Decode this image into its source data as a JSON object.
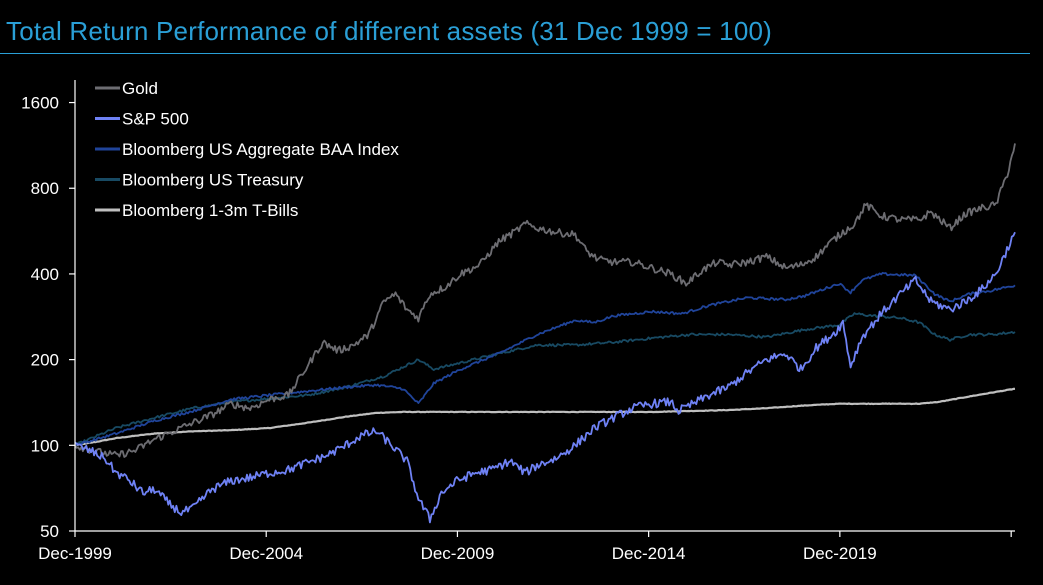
{
  "title": "Total Return Performance of different assets (31 Dec 1999 = 100)",
  "colors": {
    "title": "#2a9fd6",
    "axis": "#ffffff",
    "background": "#000000"
  },
  "chart_data": {
    "type": "line",
    "title": "Total Return Performance of different assets (31 Dec 1999 = 100)",
    "xlabel": "",
    "ylabel": "",
    "y_scale": "log",
    "ylim": [
      50,
      1800
    ],
    "xlim": [
      "Dec-1999",
      "Jun-2024"
    ],
    "grid": false,
    "legend_position": "top-left",
    "x_ticks": [
      "Dec-1999",
      "Dec-2004",
      "Dec-2009",
      "Dec-2014",
      "Dec-2019"
    ],
    "y_ticks": [
      50,
      100,
      200,
      400,
      800,
      1600
    ],
    "series": [
      {
        "name": "Gold",
        "color": "#6d6d72",
        "x": [
          1999.92,
          2000.5,
          2001.0,
          2001.5,
          2002.0,
          2002.5,
          2003.0,
          2003.5,
          2004.0,
          2004.5,
          2005.0,
          2005.5,
          2006.0,
          2006.4,
          2006.8,
          2007.2,
          2007.6,
          2008.0,
          2008.3,
          2008.6,
          2008.9,
          2009.2,
          2009.6,
          2010.0,
          2010.5,
          2011.0,
          2011.4,
          2011.7,
          2012.0,
          2012.5,
          2013.0,
          2013.3,
          2013.6,
          2014.0,
          2014.5,
          2015.0,
          2015.5,
          2015.9,
          2016.3,
          2016.7,
          2017.0,
          2017.5,
          2018.0,
          2018.5,
          2018.9,
          2019.3,
          2019.7,
          2020.0,
          2020.3,
          2020.6,
          2021.0,
          2021.5,
          2022.0,
          2022.3,
          2022.8,
          2023.2,
          2023.6,
          2024.0,
          2024.3,
          2024.5
        ],
        "values": [
          100,
          95,
          92,
          96,
          105,
          112,
          120,
          128,
          140,
          135,
          145,
          150,
          190,
          230,
          215,
          225,
          245,
          320,
          340,
          300,
          280,
          340,
          360,
          400,
          430,
          520,
          560,
          600,
          580,
          560,
          550,
          480,
          450,
          440,
          440,
          420,
          400,
          370,
          410,
          440,
          430,
          440,
          460,
          420,
          430,
          460,
          520,
          560,
          600,
          700,
          640,
          620,
          620,
          660,
          580,
          650,
          680,
          700,
          900,
          1150
        ]
      },
      {
        "name": "S&P 500",
        "color": "#6f82f5",
        "x": [
          1999.92,
          2000.3,
          2000.7,
          2001.0,
          2001.3,
          2001.7,
          2002.0,
          2002.4,
          2002.7,
          2003.0,
          2003.5,
          2004.0,
          2004.5,
          2005.0,
          2005.5,
          2006.0,
          2006.5,
          2007.0,
          2007.4,
          2007.8,
          2008.2,
          2008.6,
          2008.9,
          2009.2,
          2009.5,
          2009.9,
          2010.4,
          2010.8,
          2011.3,
          2011.7,
          2012.0,
          2012.5,
          2013.0,
          2013.5,
          2014.0,
          2014.5,
          2015.0,
          2015.5,
          2015.7,
          2016.0,
          2016.5,
          2017.0,
          2017.5,
          2018.0,
          2018.5,
          2018.9,
          2019.3,
          2019.8,
          2020.0,
          2020.2,
          2020.5,
          2021.0,
          2021.5,
          2021.9,
          2022.3,
          2022.8,
          2023.2,
          2023.6,
          2024.0,
          2024.5
        ],
        "values": [
          100,
          96,
          90,
          80,
          76,
          68,
          70,
          62,
          58,
          60,
          70,
          75,
          77,
          80,
          82,
          87,
          92,
          100,
          108,
          112,
          100,
          88,
          65,
          55,
          68,
          75,
          80,
          82,
          88,
          80,
          85,
          90,
          100,
          115,
          125,
          135,
          140,
          142,
          132,
          138,
          150,
          160,
          180,
          200,
          210,
          185,
          220,
          250,
          270,
          190,
          240,
          290,
          340,
          380,
          320,
          300,
          320,
          350,
          400,
          560
        ]
      },
      {
        "name": "Bloomberg US Aggregate BAA Index",
        "color": "#20449a",
        "x": [
          1999.92,
          2001.0,
          2002.0,
          2003.0,
          2004.0,
          2005.0,
          2006.0,
          2007.0,
          2007.8,
          2008.5,
          2008.9,
          2009.3,
          2010.0,
          2011.0,
          2012.0,
          2013.0,
          2013.5,
          2014.0,
          2015.0,
          2015.8,
          2016.5,
          2017.5,
          2018.5,
          2019.0,
          2019.9,
          2020.2,
          2020.5,
          2021.0,
          2021.9,
          2022.4,
          2022.8,
          2023.3,
          2023.9,
          2024.5
        ],
        "values": [
          100,
          110,
          122,
          132,
          145,
          150,
          155,
          160,
          163,
          158,
          140,
          165,
          185,
          210,
          245,
          275,
          270,
          285,
          295,
          290,
          310,
          330,
          325,
          335,
          370,
          345,
          380,
          400,
          395,
          340,
          320,
          340,
          350,
          365
        ]
      },
      {
        "name": "Bloomberg US Treasury",
        "color": "#184a63",
        "x": [
          1999.92,
          2000.5,
          2001.0,
          2002.0,
          2003.0,
          2004.0,
          2005.0,
          2006.0,
          2007.0,
          2008.0,
          2008.9,
          2009.3,
          2010.0,
          2011.0,
          2012.0,
          2013.0,
          2014.0,
          2015.0,
          2016.0,
          2017.0,
          2018.0,
          2019.0,
          2019.9,
          2020.3,
          2020.8,
          2021.5,
          2022.0,
          2022.4,
          2022.8,
          2023.3,
          2023.9,
          2024.5
        ],
        "values": [
          100,
          108,
          115,
          125,
          135,
          142,
          146,
          150,
          160,
          175,
          200,
          185,
          195,
          210,
          225,
          225,
          230,
          238,
          245,
          245,
          240,
          255,
          265,
          290,
          285,
          280,
          270,
          245,
          235,
          245,
          245,
          250
        ]
      },
      {
        "name": "Bloomberg 1-3m T-Bills",
        "color": "#bfbfbf",
        "x": [
          1999.92,
          2000.5,
          2001.0,
          2001.5,
          2002.0,
          2003.0,
          2004.0,
          2005.0,
          2006.0,
          2007.0,
          2007.8,
          2008.5,
          2009.0,
          2012.0,
          2015.0,
          2016.0,
          2017.0,
          2018.0,
          2019.0,
          2019.9,
          2020.5,
          2021.5,
          2022.0,
          2022.5,
          2023.0,
          2023.5,
          2024.0,
          2024.5
        ],
        "values": [
          100,
          103,
          106,
          108,
          110,
          112,
          113,
          115,
          120,
          126,
          130,
          131,
          131,
          131,
          131,
          132,
          133,
          135,
          138,
          140,
          140,
          140,
          140,
          142,
          146,
          150,
          154,
          158
        ]
      }
    ]
  }
}
